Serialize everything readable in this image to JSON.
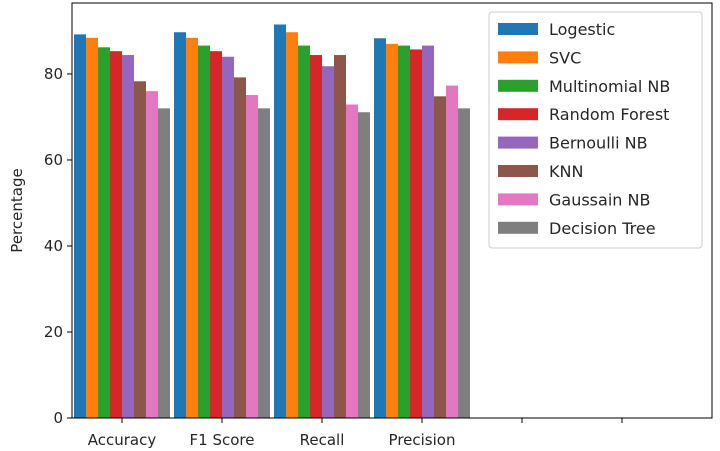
{
  "chart_data": {
    "type": "bar",
    "title": "",
    "xlabel": "",
    "ylabel": "Percentage",
    "ylim": [
      0,
      96.5
    ],
    "yticks": [
      0,
      20,
      40,
      60,
      80
    ],
    "xlim": [
      -0.5,
      5.9
    ],
    "categories": [
      "Accuracy",
      "F1 Score",
      "Recall",
      "Precision"
    ],
    "extra_x_ticks": [
      4,
      5
    ],
    "grid": false,
    "legend_position": "top-right",
    "series": [
      {
        "name": "Logestic",
        "color": "#1f77b4",
        "values": [
          89.2,
          89.7,
          91.5,
          88.3
        ]
      },
      {
        "name": "SVC",
        "color": "#ff7f0e",
        "values": [
          88.4,
          88.4,
          89.7,
          87.0
        ]
      },
      {
        "name": "Multinomial NB",
        "color": "#2ca02c",
        "values": [
          86.2,
          86.6,
          86.6,
          86.6
        ]
      },
      {
        "name": "Random Forest",
        "color": "#d62728",
        "values": [
          85.3,
          85.3,
          84.4,
          85.7
        ]
      },
      {
        "name": "Bernoulli NB",
        "color": "#9467bd",
        "values": [
          84.4,
          84.0,
          81.8,
          86.6
        ]
      },
      {
        "name": "KNN",
        "color": "#8c564b",
        "values": [
          78.3,
          79.2,
          84.4,
          74.8
        ]
      },
      {
        "name": "Gaussain NB",
        "color": "#e377c2",
        "values": [
          76.0,
          75.1,
          72.9,
          77.3
        ]
      },
      {
        "name": "Decision Tree",
        "color": "#7f7f7f",
        "values": [
          72.0,
          72.0,
          71.1,
          72.0
        ]
      }
    ]
  }
}
